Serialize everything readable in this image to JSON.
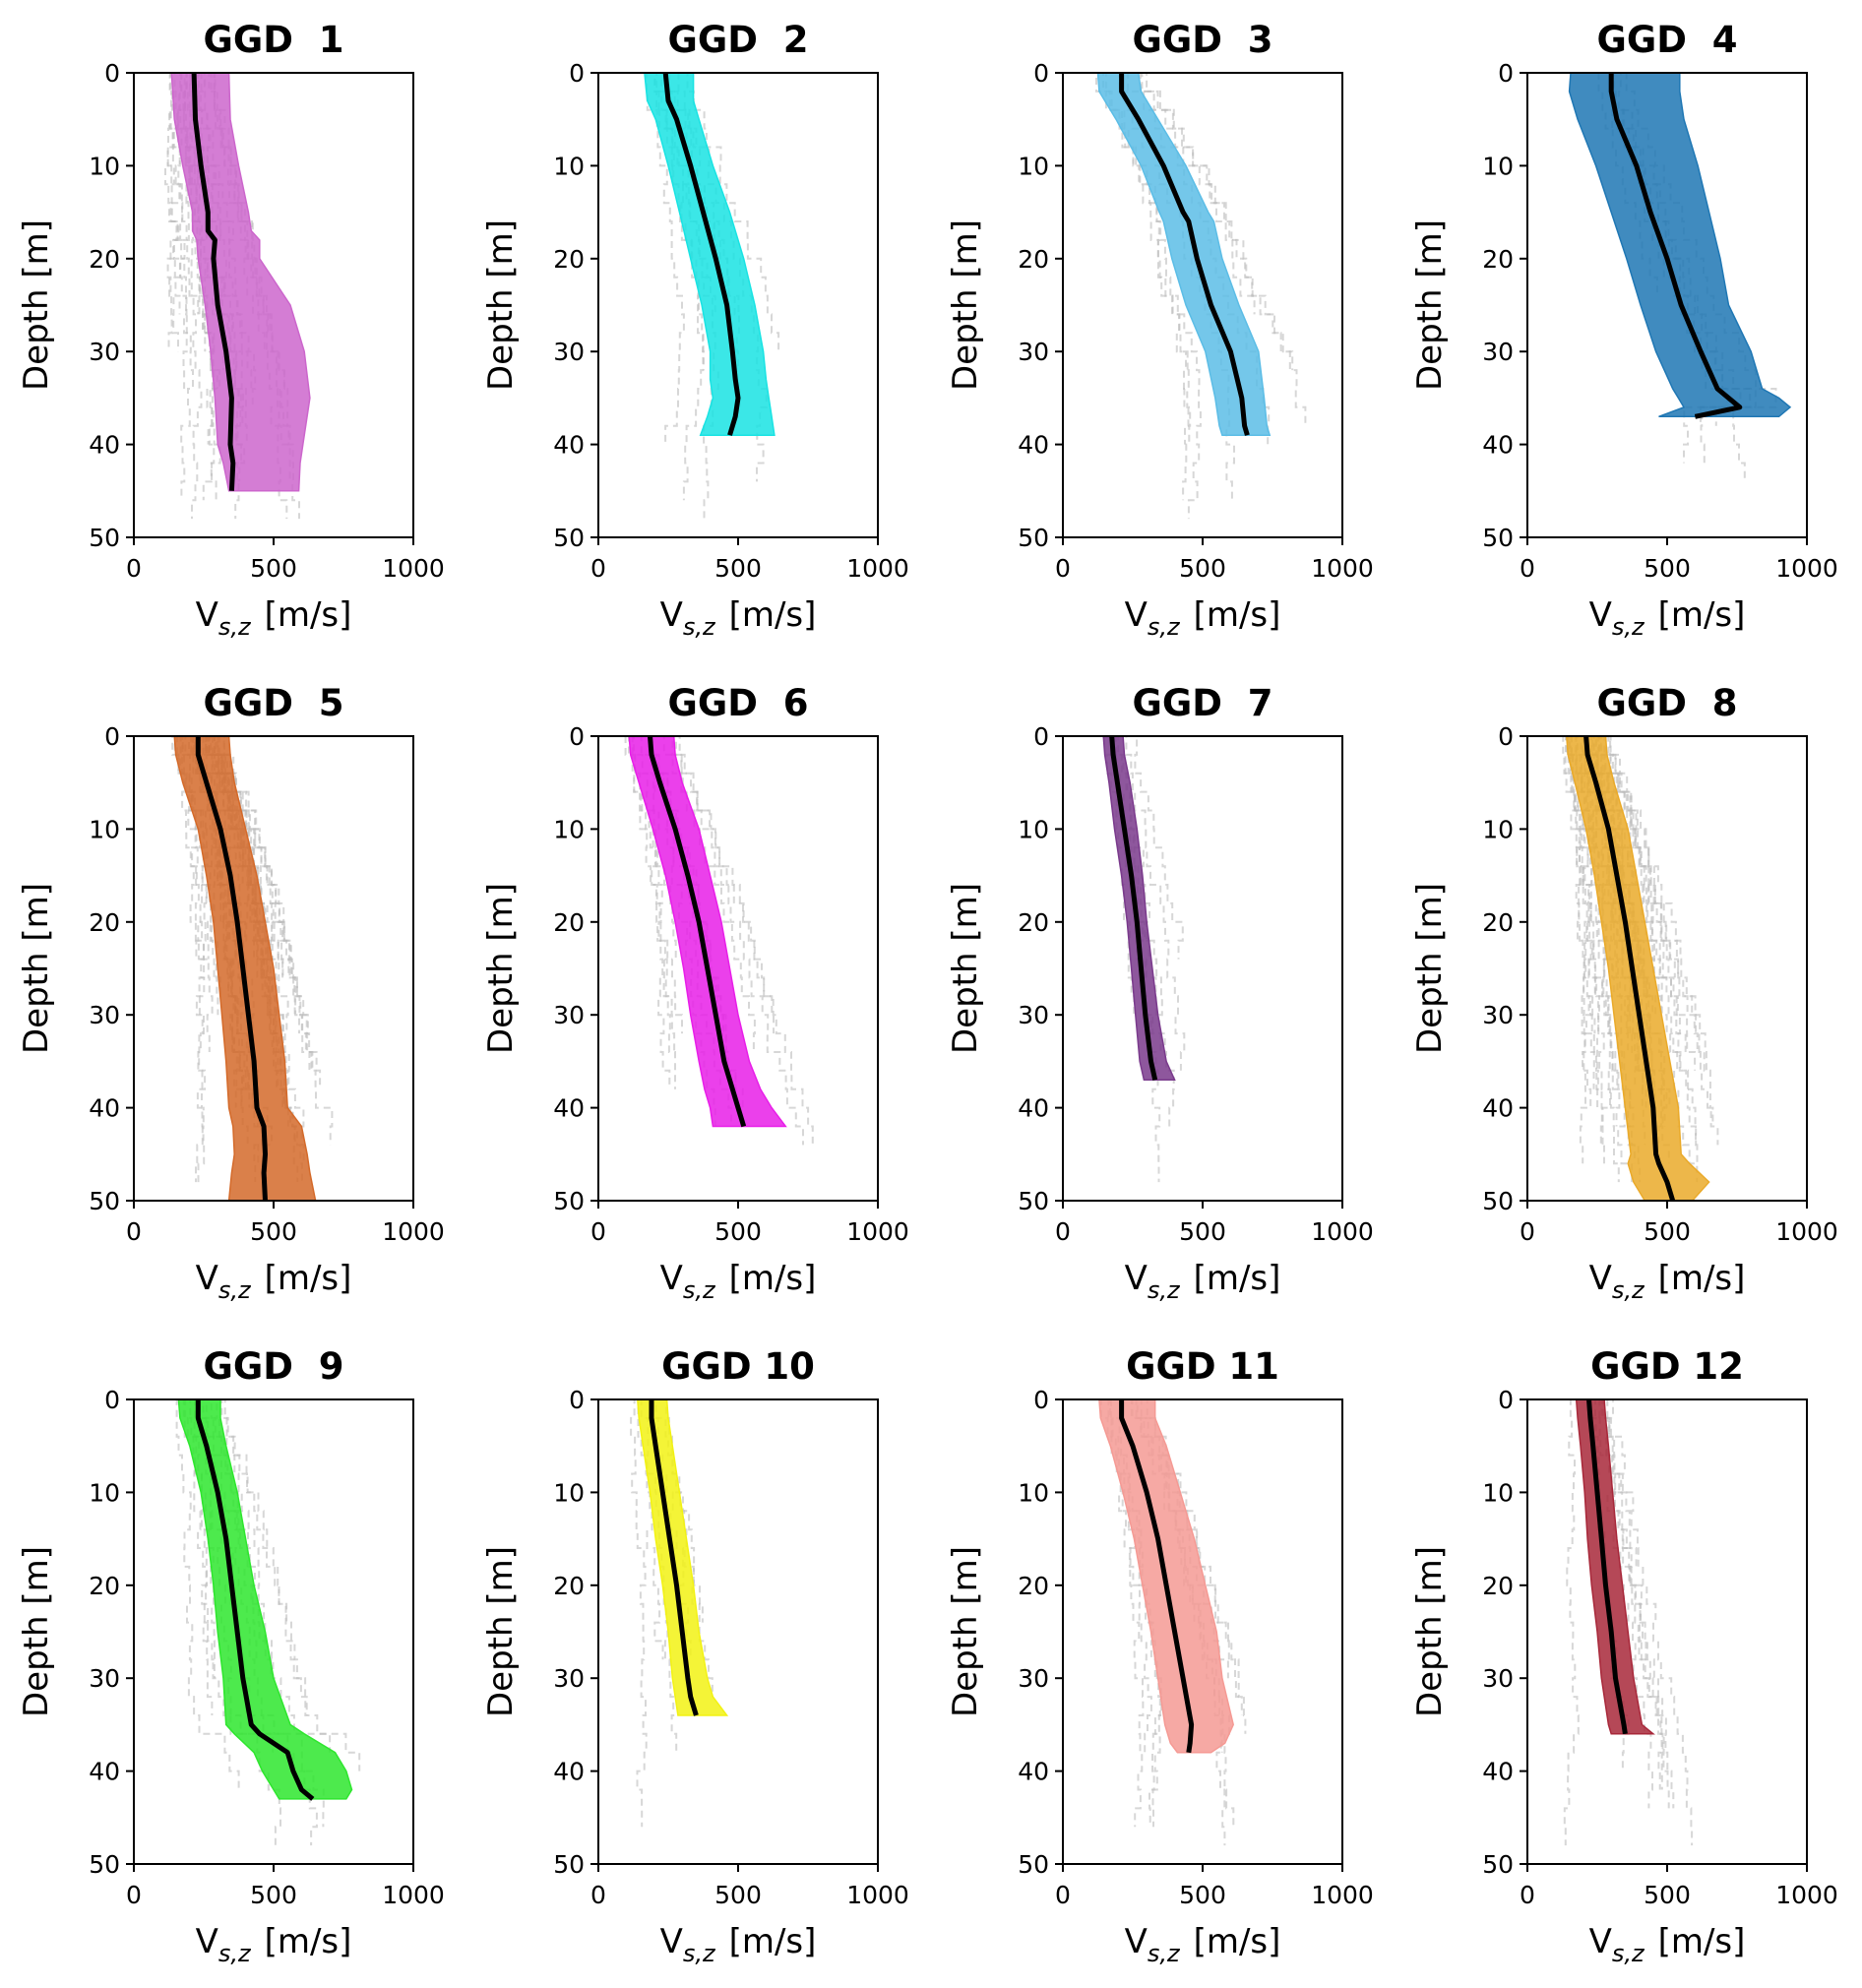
{
  "chart_data": [
    {
      "type": "line",
      "title": "GGD  1",
      "xlabel": "V",
      "xlabel_sub": "s,z",
      "xlabel_unit": "[m/s]",
      "ylabel": "Depth [m]",
      "xlim": [
        0,
        1000
      ],
      "ylim": [
        50,
        0
      ],
      "xticks": [
        "0",
        "500",
        "1000"
      ],
      "yticks": [
        "0",
        "10",
        "20",
        "30",
        "40",
        "50"
      ],
      "band_color": "#cc66cc",
      "series": [
        {
          "depth": [
            0,
            5,
            10,
            15,
            17,
            18,
            20,
            25,
            30,
            35,
            40,
            42,
            45
          ],
          "median": [
            215,
            220,
            240,
            265,
            265,
            290,
            285,
            300,
            330,
            350,
            345,
            355,
            350
          ],
          "lower": [
            135,
            145,
            175,
            210,
            210,
            225,
            230,
            255,
            275,
            290,
            300,
            320,
            340
          ],
          "upper": [
            340,
            345,
            375,
            410,
            420,
            450,
            450,
            560,
            610,
            630,
            605,
            595,
            590
          ]
        }
      ],
      "background_count": 24
    },
    {
      "type": "line",
      "title": "GGD  2",
      "xlabel": "V",
      "xlabel_sub": "s,z",
      "xlabel_unit": "[m/s]",
      "ylabel": "Depth [m]",
      "xlim": [
        0,
        1000
      ],
      "ylim": [
        50,
        0
      ],
      "xticks": [
        "0",
        "500",
        "1000"
      ],
      "yticks": [
        "0",
        "10",
        "20",
        "30",
        "40",
        "50"
      ],
      "band_color": "#19e3e3",
      "series": [
        {
          "depth": [
            0,
            3,
            5,
            10,
            15,
            20,
            25,
            30,
            33,
            35,
            37,
            39
          ],
          "median": [
            240,
            250,
            280,
            330,
            375,
            420,
            460,
            480,
            490,
            500,
            490,
            470
          ],
          "lower": [
            165,
            175,
            205,
            250,
            290,
            330,
            370,
            400,
            400,
            410,
            390,
            365
          ],
          "upper": [
            340,
            340,
            360,
            410,
            470,
            520,
            560,
            590,
            600,
            610,
            620,
            630
          ]
        }
      ],
      "background_count": 10
    },
    {
      "type": "line",
      "title": "GGD  3",
      "xlabel": "V",
      "xlabel_sub": "s,z",
      "xlabel_unit": "[m/s]",
      "ylabel": "Depth [m]",
      "xlim": [
        0,
        1000
      ],
      "ylim": [
        50,
        0
      ],
      "xticks": [
        "0",
        "500",
        "1000"
      ],
      "yticks": [
        "0",
        "10",
        "20",
        "30",
        "40",
        "50"
      ],
      "band_color": "#5cbde6",
      "series": [
        {
          "depth": [
            0,
            2,
            5,
            10,
            15,
            16,
            20,
            25,
            30,
            35,
            38,
            39
          ],
          "median": [
            210,
            210,
            270,
            360,
            430,
            450,
            480,
            530,
            600,
            640,
            650,
            660
          ],
          "lower": [
            125,
            130,
            190,
            280,
            345,
            360,
            390,
            440,
            510,
            545,
            560,
            570
          ],
          "upper": [
            270,
            280,
            340,
            440,
            520,
            540,
            570,
            630,
            700,
            720,
            730,
            740
          ]
        }
      ],
      "background_count": 8
    },
    {
      "type": "line",
      "title": "GGD  4",
      "xlabel": "V",
      "xlabel_sub": "s,z",
      "xlabel_unit": "[m/s]",
      "ylabel": "Depth [m]",
      "xlim": [
        0,
        1000
      ],
      "ylim": [
        50,
        0
      ],
      "xticks": [
        "0",
        "500",
        "1000"
      ],
      "yticks": [
        "0",
        "10",
        "20",
        "30",
        "40",
        "50"
      ],
      "band_color": "#1f77b4",
      "series": [
        {
          "depth": [
            0,
            2,
            5,
            10,
            15,
            20,
            25,
            30,
            34,
            35,
            36,
            37
          ],
          "median": [
            300,
            300,
            320,
            390,
            440,
            500,
            550,
            620,
            680,
            720,
            760,
            600
          ],
          "lower": [
            155,
            150,
            180,
            245,
            300,
            355,
            405,
            460,
            520,
            540,
            560,
            470
          ],
          "upper": [
            545,
            545,
            560,
            610,
            650,
            690,
            720,
            800,
            840,
            900,
            940,
            900
          ]
        }
      ],
      "background_count": 6
    },
    {
      "type": "line",
      "title": "GGD  5",
      "xlabel": "V",
      "xlabel_sub": "s,z",
      "xlabel_unit": "[m/s]",
      "ylabel": "Depth [m]",
      "xlim": [
        0,
        1000
      ],
      "ylim": [
        50,
        0
      ],
      "xticks": [
        "0",
        "500",
        "1000"
      ],
      "yticks": [
        "0",
        "10",
        "20",
        "30",
        "40",
        "50"
      ],
      "band_color": "#d46a2a",
      "series": [
        {
          "depth": [
            0,
            2,
            5,
            10,
            15,
            20,
            25,
            30,
            35,
            40,
            42,
            45,
            47,
            50
          ],
          "median": [
            230,
            230,
            260,
            310,
            345,
            370,
            390,
            410,
            430,
            440,
            465,
            470,
            465,
            470
          ],
          "lower": [
            145,
            150,
            175,
            230,
            260,
            285,
            300,
            315,
            330,
            340,
            355,
            360,
            350,
            340
          ],
          "upper": [
            340,
            345,
            360,
            400,
            440,
            470,
            500,
            520,
            540,
            550,
            600,
            620,
            630,
            650
          ]
        }
      ],
      "background_count": 40
    },
    {
      "type": "line",
      "title": "GGD  6",
      "xlabel": "V",
      "xlabel_sub": "s,z",
      "xlabel_unit": "[m/s]",
      "ylabel": "Depth [m]",
      "xlim": [
        0,
        1000
      ],
      "ylim": [
        50,
        0
      ],
      "xticks": [
        "0",
        "500",
        "1000"
      ],
      "yticks": [
        "0",
        "10",
        "20",
        "30",
        "40",
        "50"
      ],
      "band_color": "#e81ee8",
      "series": [
        {
          "depth": [
            0,
            2,
            5,
            10,
            15,
            20,
            25,
            30,
            35,
            38,
            40,
            42
          ],
          "median": [
            185,
            190,
            220,
            275,
            320,
            360,
            390,
            420,
            450,
            480,
            500,
            520
          ],
          "lower": [
            110,
            115,
            145,
            195,
            240,
            275,
            305,
            330,
            360,
            380,
            400,
            410
          ],
          "upper": [
            270,
            275,
            300,
            360,
            400,
            440,
            470,
            500,
            540,
            580,
            620,
            670
          ]
        }
      ],
      "background_count": 14
    },
    {
      "type": "line",
      "title": "GGD  7",
      "xlabel": "V",
      "xlabel_sub": "s,z",
      "xlabel_unit": "[m/s]",
      "ylabel": "Depth [m]",
      "xlim": [
        0,
        1000
      ],
      "ylim": [
        50,
        0
      ],
      "xticks": [
        "0",
        "500",
        "1000"
      ],
      "yticks": [
        "0",
        "10",
        "20",
        "30",
        "40",
        "50"
      ],
      "band_color": "#7a3a8c",
      "series": [
        {
          "depth": [
            0,
            2,
            5,
            10,
            15,
            20,
            25,
            30,
            35,
            37
          ],
          "median": [
            175,
            180,
            195,
            220,
            245,
            265,
            280,
            295,
            315,
            330
          ],
          "lower": [
            145,
            150,
            165,
            185,
            210,
            230,
            245,
            260,
            275,
            290
          ],
          "upper": [
            215,
            220,
            240,
            265,
            285,
            300,
            320,
            340,
            370,
            400
          ]
        }
      ],
      "background_count": 6
    },
    {
      "type": "line",
      "title": "GGD  8",
      "xlabel": "V",
      "xlabel_sub": "s,z",
      "xlabel_unit": "[m/s]",
      "ylabel": "Depth [m]",
      "xlim": [
        0,
        1000
      ],
      "ylim": [
        50,
        0
      ],
      "xticks": [
        "0",
        "500",
        "1000"
      ],
      "yticks": [
        "0",
        "10",
        "20",
        "30",
        "40",
        "50"
      ],
      "band_color": "#eaaa2a",
      "series": [
        {
          "depth": [
            0,
            2,
            5,
            10,
            15,
            20,
            25,
            30,
            35,
            40,
            45,
            46,
            48,
            50
          ],
          "median": [
            210,
            215,
            245,
            290,
            320,
            350,
            375,
            400,
            425,
            450,
            460,
            470,
            500,
            520
          ],
          "lower": [
            140,
            145,
            170,
            210,
            240,
            265,
            290,
            310,
            330,
            350,
            370,
            360,
            380,
            420
          ],
          "upper": [
            280,
            285,
            310,
            360,
            390,
            420,
            450,
            480,
            510,
            540,
            550,
            580,
            650,
            590
          ]
        }
      ],
      "background_count": 40
    },
    {
      "type": "line",
      "title": "GGD  9",
      "xlabel": "V",
      "xlabel_sub": "s,z",
      "xlabel_unit": "[m/s]",
      "ylabel": "Depth [m]",
      "xlim": [
        0,
        1000
      ],
      "ylim": [
        50,
        0
      ],
      "xticks": [
        "0",
        "500",
        "1000"
      ],
      "yticks": [
        "0",
        "10",
        "20",
        "30",
        "40",
        "50"
      ],
      "band_color": "#2ee62e",
      "series": [
        {
          "depth": [
            0,
            2,
            5,
            10,
            15,
            20,
            25,
            30,
            35,
            36,
            38,
            40,
            42,
            43
          ],
          "median": [
            230,
            230,
            260,
            300,
            330,
            350,
            370,
            390,
            420,
            450,
            550,
            570,
            600,
            640
          ],
          "lower": [
            160,
            165,
            200,
            240,
            265,
            285,
            300,
            320,
            330,
            360,
            430,
            460,
            500,
            520
          ],
          "upper": [
            310,
            310,
            330,
            370,
            400,
            430,
            470,
            500,
            560,
            610,
            720,
            760,
            780,
            760
          ]
        }
      ],
      "background_count": 12
    },
    {
      "type": "line",
      "title": "GGD 10",
      "xlabel": "V",
      "xlabel_sub": "s,z",
      "xlabel_unit": "[m/s]",
      "ylabel": "Depth [m]",
      "xlim": [
        0,
        1000
      ],
      "ylim": [
        50,
        0
      ],
      "xticks": [
        "0",
        "500",
        "1000"
      ],
      "yticks": [
        "0",
        "10",
        "20",
        "30",
        "40",
        "50"
      ],
      "band_color": "#f2f214",
      "series": [
        {
          "depth": [
            0,
            2,
            5,
            10,
            15,
            20,
            25,
            30,
            32,
            34
          ],
          "median": [
            190,
            190,
            205,
            230,
            255,
            280,
            300,
            320,
            330,
            350
          ],
          "lower": [
            140,
            145,
            160,
            185,
            205,
            230,
            250,
            265,
            275,
            285
          ],
          "upper": [
            245,
            250,
            265,
            290,
            315,
            340,
            360,
            390,
            410,
            460
          ]
        }
      ],
      "background_count": 6
    },
    {
      "type": "line",
      "title": "GGD 11",
      "xlabel": "V",
      "xlabel_sub": "s,z",
      "xlabel_unit": "[m/s]",
      "ylabel": "Depth [m]",
      "xlim": [
        0,
        1000
      ],
      "ylim": [
        50,
        0
      ],
      "xticks": [
        "0",
        "500",
        "1000"
      ],
      "yticks": [
        "0",
        "10",
        "20",
        "30",
        "40",
        "50"
      ],
      "band_color": "#f59a94",
      "series": [
        {
          "depth": [
            0,
            2,
            5,
            10,
            15,
            20,
            25,
            30,
            35,
            37,
            38
          ],
          "median": [
            210,
            210,
            250,
            300,
            340,
            370,
            400,
            430,
            460,
            455,
            450
          ],
          "lower": [
            130,
            135,
            170,
            215,
            255,
            285,
            315,
            340,
            365,
            385,
            410
          ],
          "upper": [
            330,
            330,
            370,
            420,
            470,
            510,
            550,
            570,
            610,
            580,
            530
          ]
        }
      ],
      "background_count": 10
    },
    {
      "type": "line",
      "title": "GGD 12",
      "xlabel": "V",
      "xlabel_sub": "s,z",
      "xlabel_unit": "[m/s]",
      "ylabel": "Depth [m]",
      "xlim": [
        0,
        1000
      ],
      "ylim": [
        50,
        0
      ],
      "xticks": [
        "0",
        "500",
        "1000"
      ],
      "yticks": [
        "0",
        "10",
        "20",
        "30",
        "40",
        "50"
      ],
      "band_color": "#a8283a",
      "series": [
        {
          "depth": [
            0,
            2,
            5,
            10,
            15,
            20,
            25,
            30,
            35,
            36
          ],
          "median": [
            220,
            225,
            235,
            250,
            265,
            280,
            300,
            315,
            345,
            350
          ],
          "lower": [
            175,
            180,
            190,
            205,
            215,
            230,
            250,
            265,
            290,
            300
          ],
          "upper": [
            275,
            280,
            290,
            305,
            320,
            340,
            360,
            380,
            410,
            450
          ]
        }
      ],
      "background_count": 8
    }
  ]
}
